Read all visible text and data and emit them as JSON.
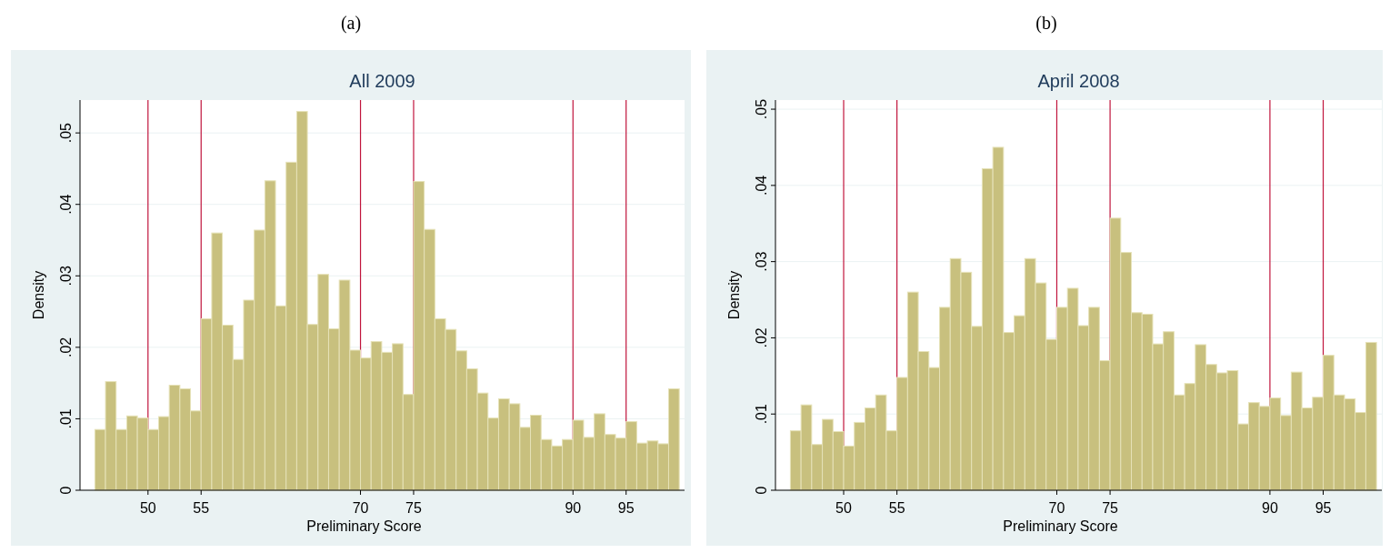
{
  "chart_data": [
    {
      "type": "histogram",
      "title": "All 2009",
      "xlabel": "Preliminary Score",
      "ylabel": "Density",
      "annotations": [
        "(a)"
      ],
      "color": "#c8c07e",
      "bins": [
        45,
        46,
        47,
        48,
        49,
        50,
        51,
        52,
        53,
        54,
        55,
        56,
        57,
        58,
        59,
        60,
        61,
        62,
        63,
        64,
        65,
        66,
        67,
        68,
        69,
        70,
        71,
        72,
        73,
        74,
        75,
        76,
        77,
        78,
        79,
        80,
        81,
        82,
        83,
        84,
        85,
        86,
        87,
        88,
        89,
        90,
        91,
        92,
        93,
        94,
        95,
        96,
        97,
        98,
        99,
        100
      ],
      "values": [
        0.0085,
        0.0152,
        0.0085,
        0.0104,
        0.0101,
        0.0085,
        0.0103,
        0.0147,
        0.0142,
        0.0111,
        0.024,
        0.036,
        0.0231,
        0.0183,
        0.0266,
        0.0364,
        0.0433,
        0.0258,
        0.0459,
        0.053,
        0.0232,
        0.0302,
        0.0226,
        0.0294,
        0.0196,
        0.0185,
        0.0208,
        0.0193,
        0.0205,
        0.0134,
        0.0432,
        0.0365,
        0.024,
        0.0225,
        0.0195,
        0.017,
        0.0136,
        0.0101,
        0.0128,
        0.0121,
        0.0088,
        0.0105,
        0.0071,
        0.0062,
        0.0071,
        0.0098,
        0.0074,
        0.0107,
        0.0078,
        0.0073,
        0.0096,
        0.0066,
        0.0069,
        0.0065,
        0.0142
      ],
      "xlim": [
        43.6,
        100.5
      ],
      "xticks": [
        50,
        55,
        70,
        75,
        90,
        95
      ],
      "ylim": [
        0,
        0.0546
      ],
      "yticks": [
        {
          "value": 0,
          "label": "0"
        },
        {
          "value": 0.01,
          "label": ".01"
        },
        {
          "value": 0.02,
          "label": ".02"
        },
        {
          "value": 0.03,
          "label": ".03"
        },
        {
          "value": 0.04,
          "label": ".04"
        },
        {
          "value": 0.05,
          "label": ".05"
        }
      ],
      "grid": "y",
      "ref_lines": [
        {
          "axis": "x",
          "value": 50,
          "color": "#c0143c"
        },
        {
          "axis": "x",
          "value": 55,
          "color": "#c0143c"
        },
        {
          "axis": "x",
          "value": 70,
          "color": "#c0143c"
        },
        {
          "axis": "x",
          "value": 75,
          "color": "#c0143c"
        },
        {
          "axis": "x",
          "value": 90,
          "color": "#c0143c"
        },
        {
          "axis": "x",
          "value": 95,
          "color": "#c0143c"
        }
      ]
    },
    {
      "type": "histogram",
      "title": "April 2008",
      "xlabel": "Preliminary Score",
      "ylabel": "Density",
      "annotations": [
        "(b)"
      ],
      "color": "#c8c07e",
      "bins": [
        45,
        46,
        47,
        48,
        49,
        50,
        51,
        52,
        53,
        54,
        55,
        56,
        57,
        58,
        59,
        60,
        61,
        62,
        63,
        64,
        65,
        66,
        67,
        68,
        69,
        70,
        71,
        72,
        73,
        74,
        75,
        76,
        77,
        78,
        79,
        80,
        81,
        82,
        83,
        84,
        85,
        86,
        87,
        88,
        89,
        90,
        91,
        92,
        93,
        94,
        95,
        96,
        97,
        98,
        99,
        100
      ],
      "values": [
        0.0078,
        0.0112,
        0.006,
        0.0093,
        0.0077,
        0.0058,
        0.0089,
        0.0108,
        0.0125,
        0.0078,
        0.0148,
        0.026,
        0.0182,
        0.0161,
        0.024,
        0.0304,
        0.0286,
        0.0215,
        0.0422,
        0.045,
        0.0207,
        0.0229,
        0.0304,
        0.0272,
        0.0198,
        0.024,
        0.0265,
        0.0216,
        0.024,
        0.017,
        0.0357,
        0.0312,
        0.0233,
        0.0231,
        0.0192,
        0.0208,
        0.0125,
        0.014,
        0.0191,
        0.0165,
        0.0154,
        0.0157,
        0.0087,
        0.0115,
        0.011,
        0.0121,
        0.0098,
        0.0155,
        0.0108,
        0.0122,
        0.0177,
        0.0125,
        0.012,
        0.0102,
        0.0194
      ],
      "xlim": [
        43.6,
        100.5
      ],
      "xticks": [
        50,
        55,
        70,
        75,
        90,
        95
      ],
      "ylim": [
        0,
        0.0512
      ],
      "yticks": [
        {
          "value": 0,
          "label": "0"
        },
        {
          "value": 0.01,
          "label": ".01"
        },
        {
          "value": 0.02,
          "label": ".02"
        },
        {
          "value": 0.03,
          "label": ".03"
        },
        {
          "value": 0.04,
          "label": ".04"
        },
        {
          "value": 0.05,
          "label": ".05"
        }
      ],
      "grid": "y",
      "ref_lines": [
        {
          "axis": "x",
          "value": 50,
          "color": "#c0143c"
        },
        {
          "axis": "x",
          "value": 55,
          "color": "#c0143c"
        },
        {
          "axis": "x",
          "value": 70,
          "color": "#c0143c"
        },
        {
          "axis": "x",
          "value": 75,
          "color": "#c0143c"
        },
        {
          "axis": "x",
          "value": 90,
          "color": "#c0143c"
        },
        {
          "axis": "x",
          "value": 95,
          "color": "#c0143c"
        }
      ]
    }
  ]
}
